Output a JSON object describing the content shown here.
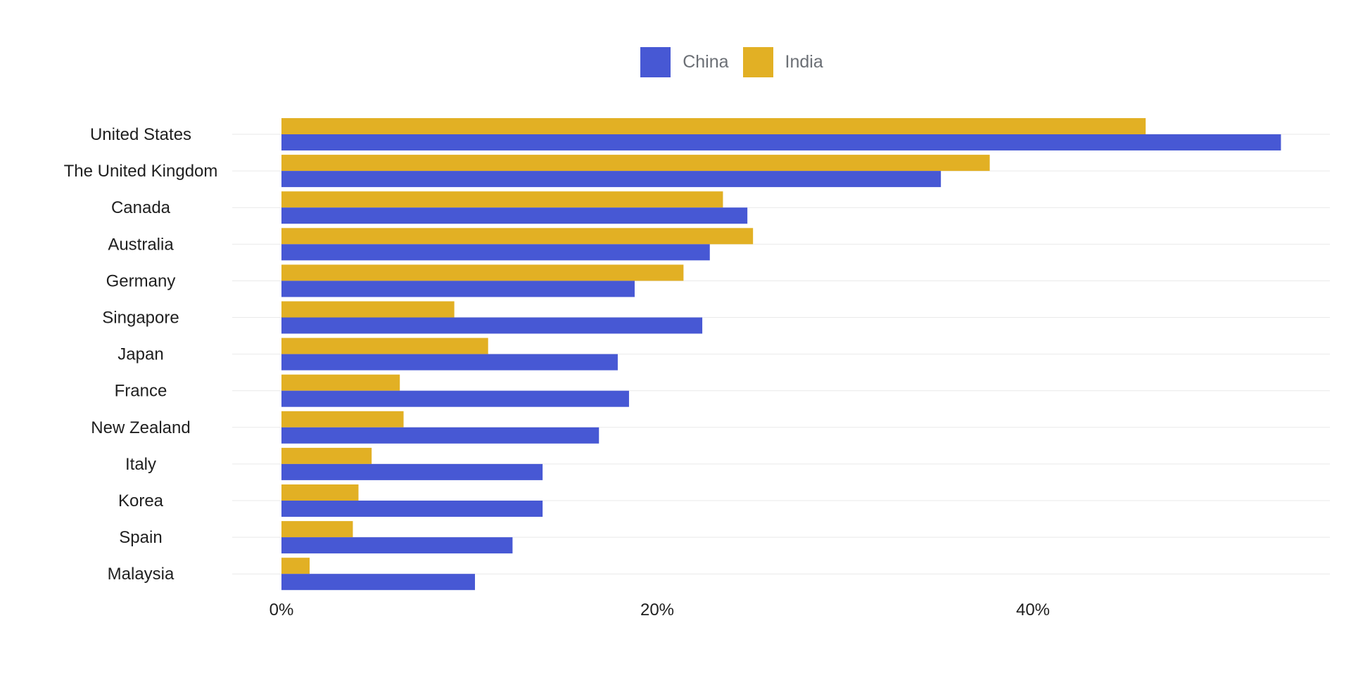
{
  "chart_data": {
    "type": "bar",
    "orientation": "horizontal",
    "categories": [
      "United States",
      "The United Kingdom",
      "Canada",
      "Australia",
      "Germany",
      "Singapore",
      "Japan",
      "France",
      "New Zealand",
      "Italy",
      "Korea",
      "Spain",
      "Malaysia"
    ],
    "series": [
      {
        "name": "China",
        "color": "#4758d4",
        "values": [
          53.2,
          35.1,
          24.8,
          22.8,
          18.8,
          22.4,
          17.9,
          18.5,
          16.9,
          13.9,
          13.9,
          12.3,
          10.3
        ]
      },
      {
        "name": "India",
        "color": "#e2b024",
        "values": [
          46.0,
          37.7,
          23.5,
          25.1,
          21.4,
          9.2,
          11.0,
          6.3,
          6.5,
          4.8,
          4.1,
          3.8,
          1.5
        ]
      }
    ],
    "xlim": [
      0,
      55
    ],
    "xticks": [
      "0%",
      "20%",
      "40%"
    ],
    "xtick_values": [
      0,
      20,
      40
    ],
    "grid": true,
    "legend_position": "top-center"
  }
}
